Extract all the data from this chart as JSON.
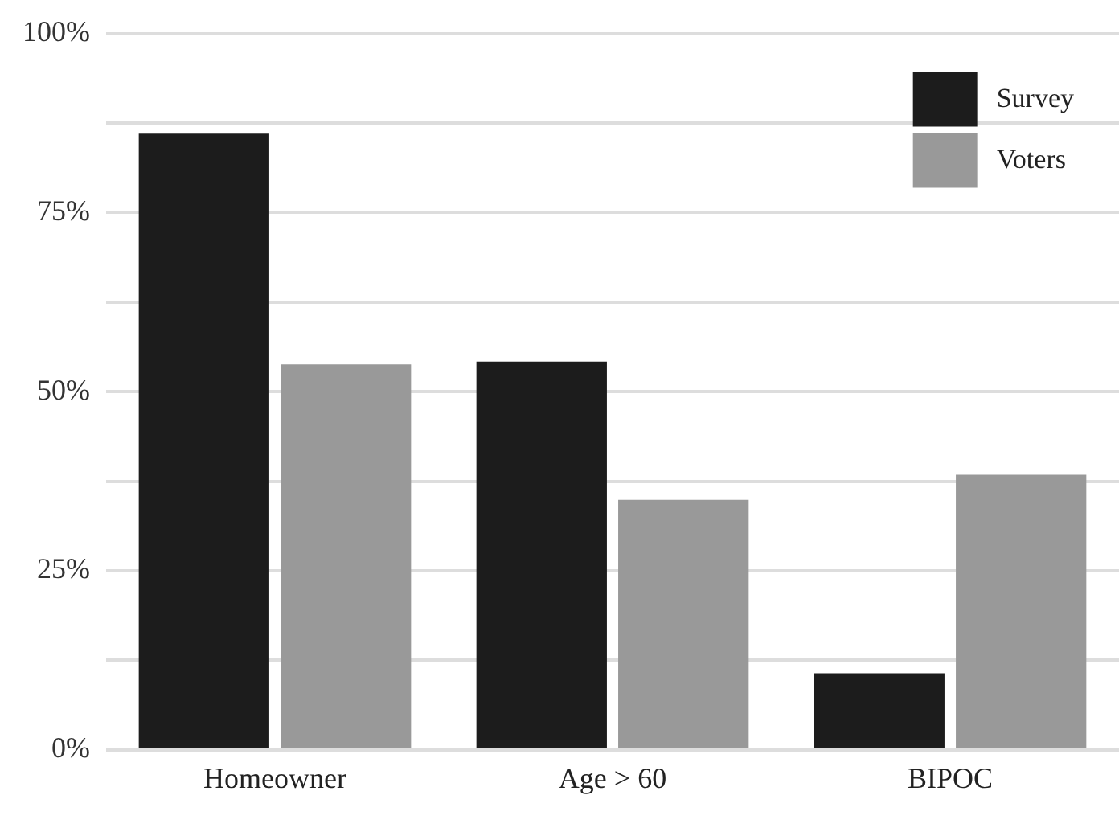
{
  "chart_data": {
    "type": "bar",
    "categories": [
      "Homeowner",
      "Age > 60",
      "BIPOC"
    ],
    "series": [
      {
        "name": "Survey",
        "color": "#1c1c1c",
        "values": [
          86,
          54.2,
          10.7
        ]
      },
      {
        "name": "Voters",
        "color": "#999999",
        "values": [
          53.8,
          34.9,
          38.4
        ]
      }
    ],
    "ylim": [
      0,
      100
    ],
    "yticks": [
      {
        "value": 0,
        "label": "0%"
      },
      {
        "value": 12.5,
        "label": null
      },
      {
        "value": 25,
        "label": "25%"
      },
      {
        "value": 37.5,
        "label": null
      },
      {
        "value": 50,
        "label": "50%"
      },
      {
        "value": 62.5,
        "label": null
      },
      {
        "value": 75,
        "label": "75%"
      },
      {
        "value": 87.5,
        "label": null
      },
      {
        "value": 100,
        "label": "100%"
      }
    ],
    "grid": "y",
    "legend": "top right"
  }
}
